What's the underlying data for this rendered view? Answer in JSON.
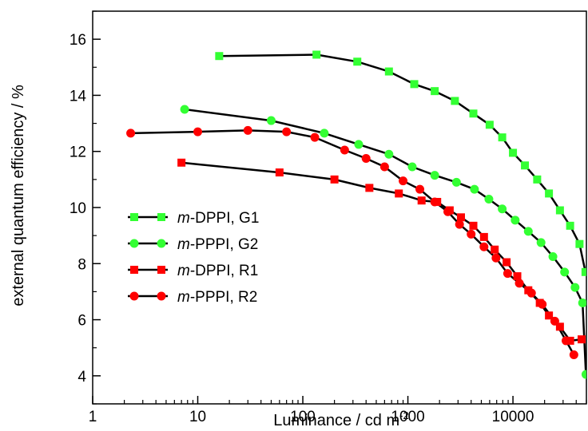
{
  "chart_data": {
    "type": "line",
    "xscale": "log",
    "xlabel": "Luminance / cd m",
    "xlabel_sup": "-2",
    "ylabel": "external quantum efficiency / %",
    "xlim": [
      1,
      50000
    ],
    "ylim": [
      3.0,
      17.0
    ],
    "x_ticks": [
      {
        "value": 1,
        "label": "1"
      },
      {
        "value": 10,
        "label": "10"
      },
      {
        "value": 100,
        "label": "100"
      },
      {
        "value": 1000,
        "label": "1000"
      },
      {
        "value": 10000,
        "label": "10000"
      }
    ],
    "y_ticks": [
      {
        "value": 4,
        "label": "4"
      },
      {
        "value": 6,
        "label": "6"
      },
      {
        "value": 8,
        "label": "8"
      },
      {
        "value": 10,
        "label": "10"
      },
      {
        "value": 12,
        "label": "12"
      },
      {
        "value": 14,
        "label": "14"
      },
      {
        "value": 16,
        "label": "16"
      }
    ],
    "grid": false,
    "legend_position": "left",
    "series": [
      {
        "name": "m-DPPI, G1",
        "name_italic": "m",
        "name_rest": "-DPPI, G1",
        "color": "#33ff33",
        "marker": "square",
        "x": [
          16,
          135,
          330,
          660,
          1150,
          1800,
          2800,
          4200,
          6000,
          7900,
          10000,
          13000,
          17000,
          22000,
          28000,
          35000,
          43000,
          49000
        ],
        "y": [
          15.4,
          15.45,
          15.2,
          14.85,
          14.4,
          14.15,
          13.8,
          13.35,
          12.95,
          12.5,
          11.95,
          11.5,
          11.0,
          10.5,
          9.9,
          9.35,
          8.7,
          7.7
        ]
      },
      {
        "name": "m-PPPI, G2",
        "name_italic": "m",
        "name_rest": "-PPPI, G2",
        "color": "#33ff33",
        "marker": "circle",
        "x": [
          7.5,
          50,
          160,
          340,
          660,
          1100,
          1800,
          2900,
          4300,
          5900,
          7900,
          10500,
          14000,
          18500,
          24000,
          31000,
          39000,
          46000,
          49500
        ],
        "y": [
          13.5,
          13.1,
          12.65,
          12.25,
          11.9,
          11.45,
          11.15,
          10.9,
          10.65,
          10.3,
          9.95,
          9.55,
          9.15,
          8.75,
          8.25,
          7.7,
          7.15,
          6.6,
          4.05
        ]
      },
      {
        "name": "m-DPPI, R1",
        "name_italic": "m",
        "name_rest": "-DPPI, R1",
        "color": "#ff0000",
        "marker": "square",
        "x": [
          7,
          60,
          200,
          430,
          820,
          1350,
          1900,
          2500,
          3200,
          4200,
          5300,
          6700,
          8700,
          11000,
          14000,
          18000,
          22000,
          28000,
          35000,
          45000
        ],
        "y": [
          11.6,
          11.25,
          11.0,
          10.7,
          10.5,
          10.25,
          10.2,
          9.9,
          9.65,
          9.35,
          8.95,
          8.5,
          8.05,
          7.55,
          7.05,
          6.6,
          6.15,
          5.75,
          5.25,
          5.3
        ]
      },
      {
        "name": "m-PPPI, R2",
        "name_italic": "m",
        "name_rest": "-PPPI, R2",
        "color": "#ff0000",
        "marker": "circle",
        "x": [
          2.3,
          10,
          30,
          70,
          130,
          250,
          400,
          600,
          900,
          1300,
          1800,
          2400,
          3100,
          4000,
          5300,
          6900,
          8900,
          11500,
          15000,
          19000,
          25000,
          32000,
          38000
        ],
        "y": [
          12.65,
          12.7,
          12.75,
          12.7,
          12.5,
          12.05,
          11.75,
          11.45,
          10.95,
          10.65,
          10.2,
          9.85,
          9.4,
          9.05,
          8.6,
          8.2,
          7.65,
          7.3,
          6.95,
          6.55,
          5.95,
          5.25,
          4.75
        ]
      }
    ]
  }
}
